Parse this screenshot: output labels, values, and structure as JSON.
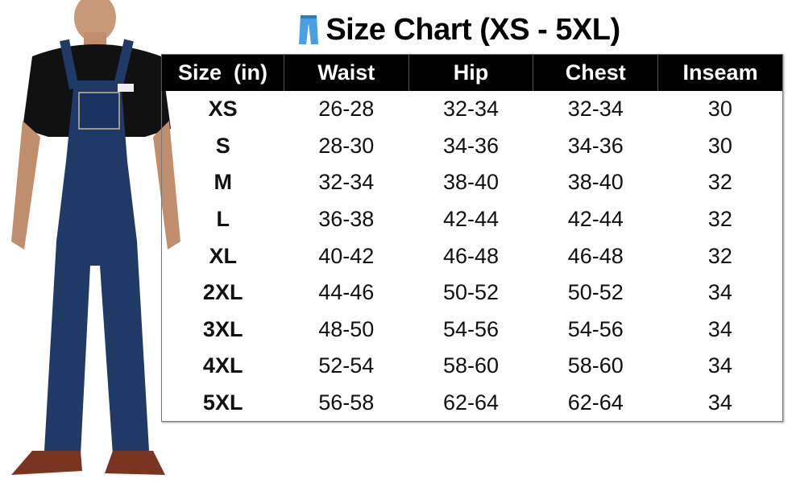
{
  "title": "Size Chart (XS - 5XL)",
  "title_icon": "jeans-icon",
  "product_image": "man-wearing-denim-bib-overalls",
  "colors": {
    "header_bg": "#000000",
    "header_text": "#ffffff",
    "denim": "#1f3a66",
    "icon": "#4a9fe0"
  },
  "table": {
    "headers": [
      "Size  (in)",
      "Waist",
      "Hip",
      "Chest",
      "Inseam"
    ],
    "rows": [
      [
        "XS",
        "26-28",
        "32-34",
        "32-34",
        "30"
      ],
      [
        "S",
        "28-30",
        "34-36",
        "34-36",
        "30"
      ],
      [
        "M",
        "32-34",
        "38-40",
        "38-40",
        "32"
      ],
      [
        "L",
        "36-38",
        "42-44",
        "42-44",
        "32"
      ],
      [
        "XL",
        "40-42",
        "46-48",
        "46-48",
        "32"
      ],
      [
        "2XL",
        "44-46",
        "50-52",
        "50-52",
        "34"
      ],
      [
        "3XL",
        "48-50",
        "54-56",
        "54-56",
        "34"
      ],
      [
        "4XL",
        "52-54",
        "58-60",
        "58-60",
        "34"
      ],
      [
        "5XL",
        "56-58",
        "62-64",
        "62-64",
        "34"
      ]
    ]
  }
}
